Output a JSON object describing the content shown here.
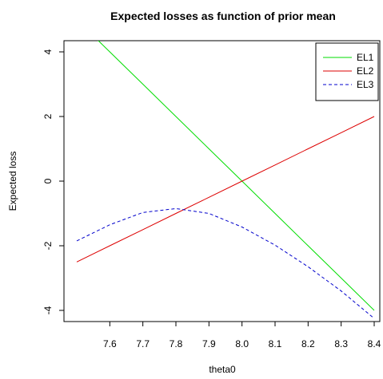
{
  "chart_data": {
    "type": "line",
    "title": "Expected losses as function of prior mean",
    "xlabel": "theta0",
    "ylabel": "Expected loss",
    "xlim": [
      7.5,
      8.4
    ],
    "ylim": [
      -4.2,
      4.2
    ],
    "xticks": [
      7.6,
      7.7,
      7.8,
      7.9,
      8.0,
      8.1,
      8.2,
      8.3,
      8.4
    ],
    "xtick_labels": [
      "7.6",
      "7.7",
      "7.8",
      "7.9",
      "8.0",
      "8.1",
      "8.2",
      "8.3",
      "8.4"
    ],
    "yticks": [
      -4,
      -2,
      0,
      2,
      4
    ],
    "ytick_labels": [
      "-4",
      "-2",
      "0",
      "2",
      "4"
    ],
    "legend_position": "top-right",
    "series": [
      {
        "name": "EL1",
        "color": "#00dd00",
        "dash": "solid",
        "x": [
          7.5,
          7.6,
          7.7,
          7.8,
          7.9,
          8.0,
          8.1,
          8.2,
          8.3,
          8.4
        ],
        "values": [
          5.0,
          4.0,
          3.0,
          2.0,
          1.0,
          0.0,
          -1.0,
          -2.0,
          -3.0,
          -4.0
        ]
      },
      {
        "name": "EL2",
        "color": "#dd0000",
        "dash": "solid",
        "x": [
          7.5,
          7.6,
          7.7,
          7.8,
          7.9,
          8.0,
          8.1,
          8.2,
          8.3,
          8.4
        ],
        "values": [
          -2.5,
          -2.0,
          -1.5,
          -1.0,
          -0.5,
          0.0,
          0.5,
          1.0,
          1.5,
          2.0
        ]
      },
      {
        "name": "EL3",
        "color": "#0000cc",
        "dash": "dashed",
        "x": [
          7.5,
          7.6,
          7.7,
          7.8,
          7.9,
          8.0,
          8.1,
          8.2,
          8.3,
          8.4
        ],
        "values": [
          -1.85,
          -1.35,
          -0.97,
          -0.85,
          -1.0,
          -1.42,
          -1.98,
          -2.65,
          -3.4,
          -4.25
        ]
      }
    ]
  }
}
